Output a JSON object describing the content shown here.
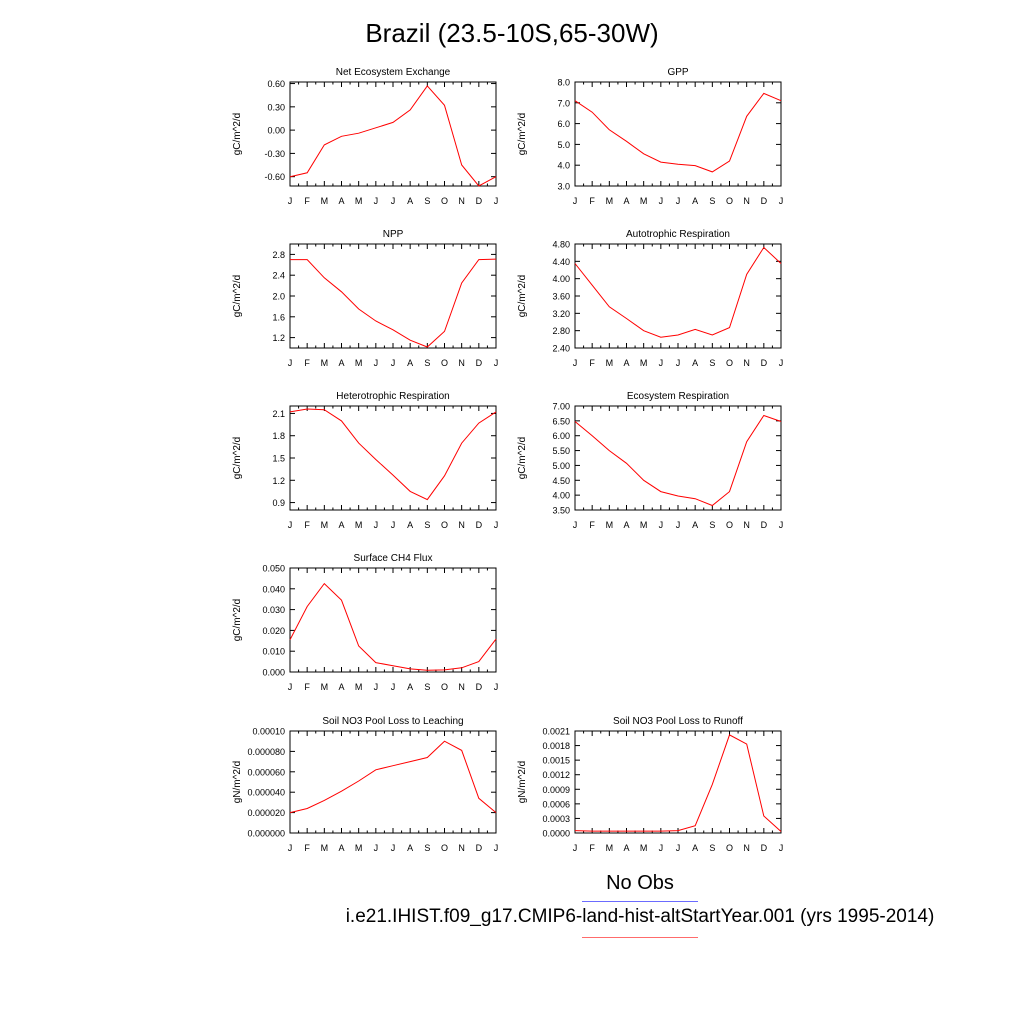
{
  "title": "Brazil (23.5-10S,65-30W)",
  "legend": {
    "obs_label": "No Obs",
    "obs_color": "#6b6bff",
    "model_label": "i.e21.IHIST.f09_g17.CMIP6-land-hist-altStartYear.001 (yrs 1995-2014)",
    "model_color": "#ff6b6b"
  },
  "line_color": "#ff0000",
  "chart_data": [
    {
      "type": "line",
      "title": "Net Ecosystem Exchange",
      "ylabel": "gC/m^2/d",
      "x": [
        "J",
        "F",
        "M",
        "A",
        "M",
        "J",
        "J",
        "A",
        "S",
        "O",
        "N",
        "D",
        "J"
      ],
      "ylim": [
        -0.72,
        0.62
      ],
      "yticks": [
        -0.6,
        -0.3,
        0.0,
        0.3,
        0.6
      ],
      "yticklabels": [
        "-0.60",
        "-0.30",
        "0.00",
        "0.30",
        "0.60"
      ],
      "values": [
        -0.6,
        -0.55,
        -0.19,
        -0.08,
        -0.04,
        0.03,
        0.1,
        0.26,
        0.57,
        0.32,
        -0.45,
        -0.72,
        -0.6
      ]
    },
    {
      "type": "line",
      "title": "GPP",
      "ylabel": "gC/m^2/d",
      "x": [
        "J",
        "F",
        "M",
        "A",
        "M",
        "J",
        "J",
        "A",
        "S",
        "O",
        "N",
        "D",
        "J"
      ],
      "ylim": [
        3.0,
        8.0
      ],
      "yticks": [
        3,
        4,
        5,
        6,
        7,
        8
      ],
      "yticklabels": [
        "3.0",
        "4.0",
        "5.0",
        "6.0",
        "7.0",
        "8.0"
      ],
      "values": [
        7.1,
        6.55,
        5.7,
        5.15,
        4.55,
        4.15,
        4.05,
        3.98,
        3.68,
        4.2,
        6.35,
        7.45,
        7.1
      ]
    },
    {
      "type": "line",
      "title": "NPP",
      "ylabel": "gC/m^2/d",
      "x": [
        "J",
        "F",
        "M",
        "A",
        "M",
        "J",
        "J",
        "A",
        "S",
        "O",
        "N",
        "D",
        "J"
      ],
      "ylim": [
        1.0,
        3.0
      ],
      "yticks": [
        1.2,
        1.6,
        2.0,
        2.4,
        2.8
      ],
      "yticklabels": [
        "1.2",
        "1.6",
        "2.0",
        "2.4",
        "2.8"
      ],
      "values": [
        2.7,
        2.7,
        2.35,
        2.08,
        1.75,
        1.52,
        1.35,
        1.15,
        1.02,
        1.32,
        2.25,
        2.7,
        2.71
      ]
    },
    {
      "type": "line",
      "title": "Autotrophic Respiration",
      "ylabel": "gC/m^2/d",
      "x": [
        "J",
        "F",
        "M",
        "A",
        "M",
        "J",
        "J",
        "A",
        "S",
        "O",
        "N",
        "D",
        "J"
      ],
      "ylim": [
        2.4,
        4.8
      ],
      "yticks": [
        2.4,
        2.8,
        3.2,
        3.6,
        4.0,
        4.4,
        4.8
      ],
      "yticklabels": [
        "2.40",
        "2.80",
        "3.20",
        "3.60",
        "4.00",
        "4.40",
        "4.80"
      ],
      "values": [
        4.35,
        3.85,
        3.35,
        3.08,
        2.8,
        2.65,
        2.7,
        2.83,
        2.7,
        2.87,
        4.1,
        4.72,
        4.35
      ]
    },
    {
      "type": "line",
      "title": "Heterotrophic Respiration",
      "ylabel": "gC/m^2/d",
      "x": [
        "J",
        "F",
        "M",
        "A",
        "M",
        "J",
        "J",
        "A",
        "S",
        "O",
        "N",
        "D",
        "J"
      ],
      "ylim": [
        0.8,
        2.2
      ],
      "yticks": [
        0.9,
        1.2,
        1.5,
        1.8,
        2.1
      ],
      "yticklabels": [
        "0.9",
        "1.2",
        "1.5",
        "1.8",
        "2.1"
      ],
      "values": [
        2.12,
        2.16,
        2.15,
        2.0,
        1.7,
        1.48,
        1.27,
        1.05,
        0.94,
        1.26,
        1.7,
        1.97,
        2.12
      ]
    },
    {
      "type": "line",
      "title": "Ecosystem Respiration",
      "ylabel": "gC/m^2/d",
      "x": [
        "J",
        "F",
        "M",
        "A",
        "M",
        "J",
        "J",
        "A",
        "S",
        "O",
        "N",
        "D",
        "J"
      ],
      "ylim": [
        3.5,
        7.0
      ],
      "yticks": [
        3.5,
        4.0,
        4.5,
        5.0,
        5.5,
        6.0,
        6.5,
        7.0
      ],
      "yticklabels": [
        "3.50",
        "4.00",
        "4.50",
        "5.00",
        "5.50",
        "6.00",
        "6.50",
        "7.00"
      ],
      "values": [
        6.48,
        6.0,
        5.5,
        5.07,
        4.5,
        4.12,
        3.97,
        3.88,
        3.65,
        4.12,
        5.8,
        6.68,
        6.48
      ]
    },
    {
      "type": "line",
      "title": "Surface CH4 Flux",
      "ylabel": "gC/m^2/d",
      "x": [
        "J",
        "F",
        "M",
        "A",
        "M",
        "J",
        "J",
        "A",
        "S",
        "O",
        "N",
        "D",
        "J"
      ],
      "ylim": [
        0.0,
        0.05
      ],
      "yticks": [
        0,
        0.01,
        0.02,
        0.03,
        0.04,
        0.05
      ],
      "yticklabels": [
        "0.000",
        "0.010",
        "0.020",
        "0.030",
        "0.040",
        "0.050"
      ],
      "values": [
        0.0155,
        0.0315,
        0.0425,
        0.0345,
        0.0125,
        0.0045,
        0.003,
        0.0015,
        0.0008,
        0.001,
        0.002,
        0.005,
        0.0158
      ]
    },
    {
      "type": "line",
      "title": "Soil NO3 Pool Loss to Leaching",
      "ylabel": "gN/m^2/d",
      "x": [
        "J",
        "F",
        "M",
        "A",
        "M",
        "J",
        "J",
        "A",
        "S",
        "O",
        "N",
        "D",
        "J"
      ],
      "ylim": [
        0.0,
        0.0001
      ],
      "yticks": [
        0,
        2e-05,
        4e-05,
        6e-05,
        8e-05,
        0.0001
      ],
      "yticklabels": [
        "0.000000",
        "0.000020",
        "0.000040",
        "0.000060",
        "0.000080",
        "0.00010"
      ],
      "values": [
        2e-05,
        2.4e-05,
        3.2e-05,
        4.1e-05,
        5.1e-05,
        6.2e-05,
        6.6e-05,
        7e-05,
        7.4e-05,
        9e-05,
        8.1e-05,
        3.4e-05,
        2e-05
      ]
    },
    {
      "type": "line",
      "title": "Soil NO3 Pool Loss to Runoff",
      "ylabel": "gN/m^2/d",
      "x": [
        "J",
        "F",
        "M",
        "A",
        "M",
        "J",
        "J",
        "A",
        "S",
        "O",
        "N",
        "D",
        "J"
      ],
      "ylim": [
        0.0,
        0.0021
      ],
      "yticks": [
        0,
        0.0003,
        0.0006,
        0.0009,
        0.0012,
        0.0015,
        0.0018,
        0.0021
      ],
      "yticklabels": [
        "0.0000",
        "0.0003",
        "0.0006",
        "0.0009",
        "0.0012",
        "0.0015",
        "0.0018",
        "0.0021"
      ],
      "values": [
        5e-05,
        4e-05,
        4e-05,
        4e-05,
        4e-05,
        4e-05,
        5e-05,
        0.00015,
        0.001,
        0.00202,
        0.00183,
        0.00035,
        3e-05
      ]
    }
  ]
}
